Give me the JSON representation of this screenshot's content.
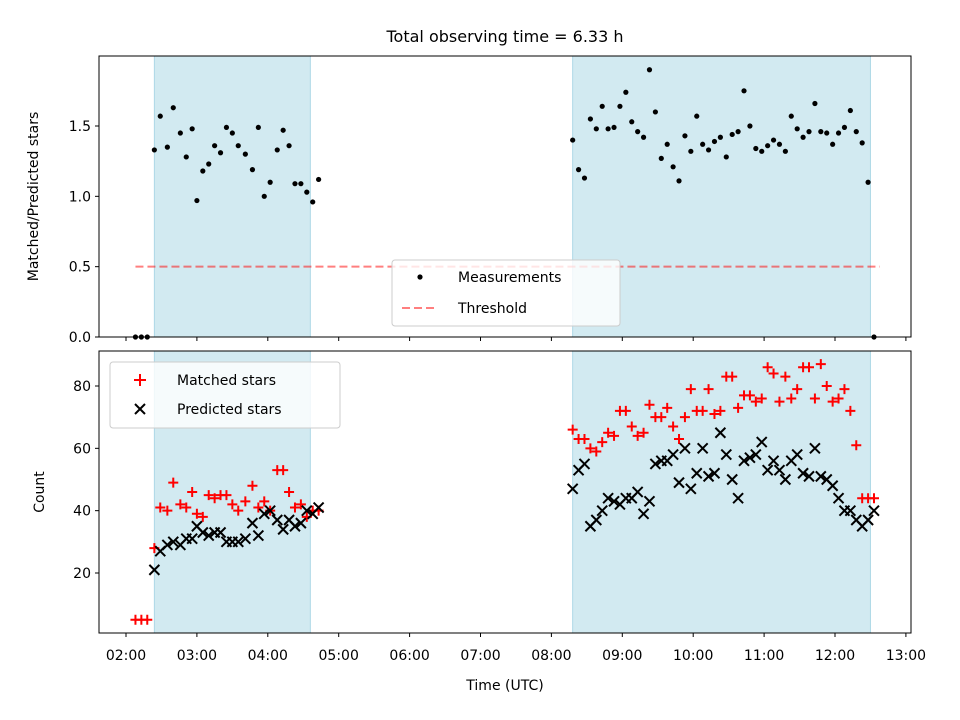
{
  "figure": {
    "title": "Total observing time = 6.33 h",
    "xlabel": "Time (UTC)",
    "x_ticks": [
      "02:00",
      "03:00",
      "04:00",
      "05:00",
      "06:00",
      "07:00",
      "08:00",
      "09:00",
      "10:00",
      "11:00",
      "12:00",
      "13:00"
    ],
    "shaded_spans": [
      [
        "02:24",
        "04:36"
      ],
      [
        "08:18",
        "12:30"
      ]
    ],
    "shade_color": "#add8e6",
    "colors": {
      "measurements": "#000000",
      "threshold": "#ff0000",
      "matched": "#ff0000",
      "predicted": "#000000"
    }
  },
  "chart_data": [
    {
      "type": "scatter",
      "ylabel": "Matched/Predicted stars",
      "ylim": [
        0,
        2.0
      ],
      "y_ticks": [
        "0.0",
        "0.5",
        "1.0",
        "1.5"
      ],
      "legend": {
        "placement": "lower-center",
        "entries": [
          "Measurements",
          "Threshold"
        ]
      },
      "threshold": {
        "name": "Threshold",
        "value": 0.5,
        "x_range": [
          "02:08",
          "12:38"
        ]
      },
      "series": [
        {
          "name": "Measurements",
          "x": [
            "02:08",
            "02:13",
            "02:18",
            "02:24",
            "02:29",
            "02:35",
            "02:40",
            "02:46",
            "02:51",
            "02:56",
            "03:00",
            "03:05",
            "03:10",
            "03:15",
            "03:20",
            "03:25",
            "03:30",
            "03:35",
            "03:41",
            "03:47",
            "03:52",
            "03:57",
            "04:02",
            "04:08",
            "04:13",
            "04:18",
            "04:23",
            "04:28",
            "04:33",
            "04:38",
            "04:43",
            "08:18",
            "08:23",
            "08:28",
            "08:33",
            "08:38",
            "08:43",
            "08:48",
            "08:53",
            "08:58",
            "09:03",
            "09:08",
            "09:13",
            "09:18",
            "09:23",
            "09:28",
            "09:33",
            "09:38",
            "09:43",
            "09:48",
            "09:53",
            "09:58",
            "10:03",
            "10:08",
            "10:13",
            "10:18",
            "10:23",
            "10:28",
            "10:33",
            "10:38",
            "10:43",
            "10:48",
            "10:53",
            "10:58",
            "11:03",
            "11:08",
            "11:13",
            "11:18",
            "11:23",
            "11:28",
            "11:33",
            "11:38",
            "11:43",
            "11:48",
            "11:53",
            "11:58",
            "12:03",
            "12:08",
            "12:13",
            "12:18",
            "12:23",
            "12:28",
            "12:33"
          ],
          "y": [
            0.0,
            0.0,
            0.0,
            1.33,
            1.57,
            1.35,
            1.63,
            1.45,
            1.28,
            1.48,
            0.97,
            1.18,
            1.23,
            1.36,
            1.31,
            1.49,
            1.45,
            1.36,
            1.3,
            1.19,
            1.49,
            1.0,
            1.1,
            1.33,
            1.47,
            1.36,
            1.09,
            1.09,
            1.03,
            0.96,
            1.12,
            1.4,
            1.19,
            1.13,
            1.55,
            1.48,
            1.64,
            1.48,
            1.49,
            1.64,
            1.74,
            1.53,
            1.46,
            1.42,
            1.9,
            1.6,
            1.27,
            1.37,
            1.21,
            1.11,
            1.43,
            1.32,
            1.57,
            1.37,
            1.33,
            1.39,
            1.42,
            1.28,
            1.44,
            1.46,
            1.75,
            1.5,
            1.34,
            1.32,
            1.36,
            1.4,
            1.37,
            1.32,
            1.57,
            1.48,
            1.42,
            1.46,
            1.66,
            1.46,
            1.45,
            1.37,
            1.45,
            1.49,
            1.61,
            1.46,
            1.38,
            1.1,
            0.0
          ]
        }
      ]
    },
    {
      "type": "scatter",
      "ylabel": "Count",
      "ylim": [
        0,
        90
      ],
      "y_ticks": [
        "20",
        "40",
        "60",
        "80"
      ],
      "legend": {
        "placement": "upper-left",
        "entries": [
          "Matched stars",
          "Predicted stars"
        ]
      },
      "series": [
        {
          "name": "Matched stars",
          "x": [
            "02:08",
            "02:13",
            "02:18",
            "02:24",
            "02:29",
            "02:35",
            "02:40",
            "02:46",
            "02:51",
            "02:56",
            "03:00",
            "03:05",
            "03:10",
            "03:15",
            "03:20",
            "03:25",
            "03:30",
            "03:35",
            "03:41",
            "03:47",
            "03:52",
            "03:57",
            "04:02",
            "04:08",
            "04:13",
            "04:18",
            "04:23",
            "04:28",
            "04:33",
            "04:38",
            "04:43",
            "08:18",
            "08:23",
            "08:28",
            "08:33",
            "08:38",
            "08:43",
            "08:48",
            "08:53",
            "08:58",
            "09:03",
            "09:08",
            "09:13",
            "09:18",
            "09:23",
            "09:28",
            "09:33",
            "09:38",
            "09:43",
            "09:48",
            "09:53",
            "09:58",
            "10:03",
            "10:08",
            "10:13",
            "10:18",
            "10:23",
            "10:28",
            "10:33",
            "10:38",
            "10:43",
            "10:48",
            "10:53",
            "10:58",
            "11:03",
            "11:08",
            "11:13",
            "11:18",
            "11:23",
            "11:28",
            "11:33",
            "11:38",
            "11:43",
            "11:48",
            "11:53",
            "11:58",
            "12:03",
            "12:08",
            "12:13",
            "12:18",
            "12:23",
            "12:28",
            "12:33"
          ],
          "y": [
            5,
            5,
            5,
            28,
            41,
            40,
            49,
            42,
            41,
            46,
            39,
            38,
            45,
            44,
            45,
            45,
            42,
            40,
            43,
            48,
            41,
            43,
            40,
            53,
            53,
            46,
            41,
            42,
            38,
            40,
            40,
            66,
            63,
            63,
            60,
            59,
            62,
            65,
            64,
            72,
            72,
            67,
            64,
            65,
            74,
            70,
            70,
            73,
            67,
            63,
            70,
            79,
            72,
            72,
            79,
            71,
            72,
            83,
            83,
            73,
            77,
            77,
            75,
            76,
            86,
            84,
            75,
            83,
            76,
            79,
            86,
            86,
            76,
            87,
            80,
            75,
            76,
            79,
            72,
            61,
            44,
            44,
            44
          ]
        },
        {
          "name": "Predicted stars",
          "x": [
            "02:24",
            "02:29",
            "02:35",
            "02:40",
            "02:46",
            "02:51",
            "02:56",
            "03:00",
            "03:05",
            "03:10",
            "03:15",
            "03:20",
            "03:25",
            "03:30",
            "03:35",
            "03:41",
            "03:47",
            "03:52",
            "03:57",
            "04:02",
            "04:08",
            "04:13",
            "04:18",
            "04:23",
            "04:28",
            "04:33",
            "04:38",
            "04:43",
            "08:18",
            "08:23",
            "08:28",
            "08:33",
            "08:38",
            "08:43",
            "08:48",
            "08:53",
            "08:58",
            "09:03",
            "09:08",
            "09:13",
            "09:18",
            "09:23",
            "09:28",
            "09:33",
            "09:38",
            "09:43",
            "09:48",
            "09:53",
            "09:58",
            "10:03",
            "10:08",
            "10:13",
            "10:18",
            "10:23",
            "10:28",
            "10:33",
            "10:38",
            "10:43",
            "10:48",
            "10:53",
            "10:58",
            "11:03",
            "11:08",
            "11:13",
            "11:18",
            "11:23",
            "11:28",
            "11:33",
            "11:38",
            "11:43",
            "11:48",
            "11:53",
            "11:58",
            "12:03",
            "12:08",
            "12:13",
            "12:18",
            "12:23",
            "12:28",
            "12:33"
          ],
          "y": [
            21,
            27,
            29,
            30,
            29,
            31,
            31,
            35,
            33,
            32,
            33,
            33,
            30,
            30,
            30,
            31,
            36,
            32,
            39,
            40,
            37,
            34,
            37,
            35,
            36,
            40,
            39,
            41,
            47,
            53,
            55,
            35,
            37,
            40,
            44,
            43,
            42,
            44,
            44,
            46,
            39,
            43,
            55,
            56,
            56,
            58,
            49,
            60,
            47,
            52,
            60,
            51,
            52,
            65,
            58,
            50,
            44,
            56,
            57,
            58,
            62,
            53,
            56,
            53,
            50,
            56,
            58,
            52,
            51,
            60,
            51,
            50,
            48,
            44,
            40,
            40,
            37,
            35,
            37,
            40
          ]
        }
      ]
    }
  ]
}
